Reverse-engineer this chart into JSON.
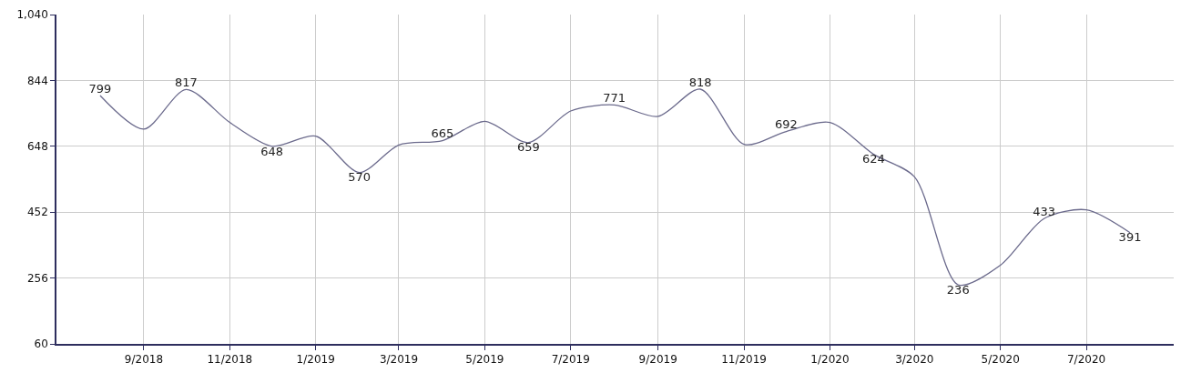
{
  "chart_data": {
    "type": "line",
    "x": [
      "2018-08",
      "2018-09",
      "2018-10",
      "2018-11",
      "2018-12",
      "2019-01",
      "2019-02",
      "2019-03",
      "2019-04",
      "2019-05",
      "2019-06",
      "2019-07",
      "2019-08",
      "2019-09",
      "2019-10",
      "2019-11",
      "2019-12",
      "2020-01",
      "2020-02",
      "2020-03",
      "2020-04",
      "2020-05",
      "2020-06",
      "2020-07",
      "2020-08"
    ],
    "series": [
      {
        "color": "#6b6a8c",
        "values": [
          799,
          699,
          817,
          719,
          648,
          678,
          570,
          652,
          665,
          722,
          659,
          753,
          771,
          737,
          818,
          654,
          692,
          719,
          624,
          557,
          236,
          294,
          433,
          459,
          391
        ],
        "value_labels": [
          "799",
          null,
          "817",
          null,
          "648",
          null,
          "570",
          null,
          "665",
          null,
          "659",
          null,
          "771",
          null,
          "818",
          null,
          "692",
          null,
          "624",
          null,
          "236",
          null,
          "433",
          null,
          "391"
        ]
      }
    ],
    "xlim": [
      "2018-07",
      "2020-09"
    ],
    "xticks": [
      {
        "value": "2018-09",
        "label": "9/2018"
      },
      {
        "value": "2018-11",
        "label": "11/2018"
      },
      {
        "value": "2019-01",
        "label": "1/2019"
      },
      {
        "value": "2019-03",
        "label": "3/2019"
      },
      {
        "value": "2019-05",
        "label": "5/2019"
      },
      {
        "value": "2019-07",
        "label": "7/2019"
      },
      {
        "value": "2019-09",
        "label": "9/2019"
      },
      {
        "value": "2019-11",
        "label": "11/2019"
      },
      {
        "value": "2020-01",
        "label": "1/2020"
      },
      {
        "value": "2020-03",
        "label": "3/2020"
      },
      {
        "value": "2020-05",
        "label": "5/2020"
      },
      {
        "value": "2020-07",
        "label": "7/2020"
      }
    ],
    "ylim": [
      60,
      1040
    ],
    "yticks": [
      60,
      256,
      452,
      648,
      844,
      {
        "value": 1040,
        "label": "1,040"
      }
    ],
    "grid": true,
    "marker": "none",
    "line_style": "solid"
  }
}
